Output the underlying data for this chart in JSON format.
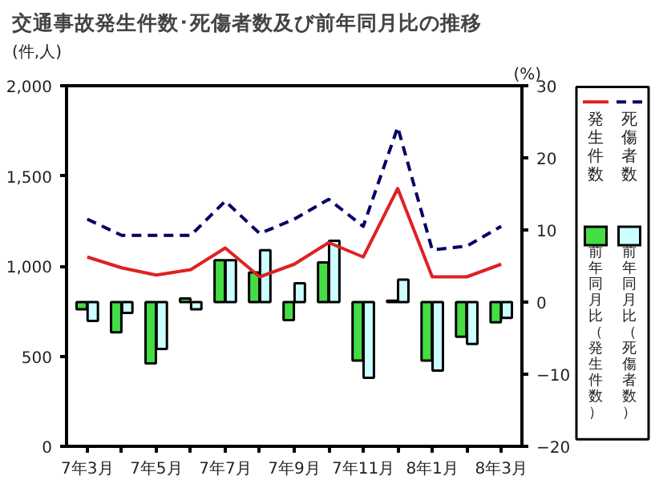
{
  "chart_data": {
    "type": "bar",
    "title": "交通事故発生件数･死傷者数及び前年同月比の推移",
    "ylabel": "(件,人)",
    "y2label": "(%)",
    "categories": [
      "7年3月",
      null,
      "7年5月",
      null,
      "7年7月",
      null,
      "7年9月",
      null,
      "7年11月",
      null,
      "8年1月",
      null,
      "8年3月"
    ],
    "series": [
      {
        "name": "前年同月比（発生件数）",
        "axis": "y2",
        "color": "#44dd44",
        "values": [
          -1.0,
          -4.2,
          -8.5,
          0.5,
          5.8,
          4.1,
          -2.5,
          5.5,
          -8.1,
          0.2,
          -8.1,
          -4.8,
          -2.8
        ]
      },
      {
        "name": "前年同月比（死傷者数）",
        "axis": "y2",
        "color": "#ccffff",
        "values": [
          -2.6,
          -1.5,
          -6.5,
          -1.0,
          5.8,
          7.2,
          2.6,
          8.5,
          -10.5,
          3.1,
          -9.5,
          -5.8,
          -2.2
        ]
      },
      {
        "name": "発生件数",
        "type": "line",
        "axis": "y",
        "color": "#dd2222",
        "line_style": "solid",
        "values": [
          1050,
          990,
          950,
          980,
          1100,
          940,
          1010,
          1130,
          1050,
          1430,
          940,
          940,
          1010
        ]
      },
      {
        "name": "死傷者数",
        "type": "line",
        "axis": "y",
        "color": "#000066",
        "line_style": "dashed",
        "values": [
          1260,
          1170,
          1170,
          1170,
          1360,
          1180,
          1260,
          1370,
          1220,
          1770,
          1090,
          1110,
          1220
        ]
      }
    ],
    "ylim": [
      0,
      2000
    ],
    "yticks": [
      0,
      {
        "value": 500,
        "label": "500"
      },
      {
        "value": 1000,
        "label": "1,000"
      },
      {
        "value": 1500,
        "label": "1,500"
      },
      {
        "value": 2000,
        "label": "2,000"
      }
    ],
    "y2lim": [
      -20,
      30
    ],
    "y2ticks": [
      -20,
      -10,
      0,
      10,
      20,
      30
    ],
    "grid": false,
    "legend": "right",
    "marker": "none"
  }
}
